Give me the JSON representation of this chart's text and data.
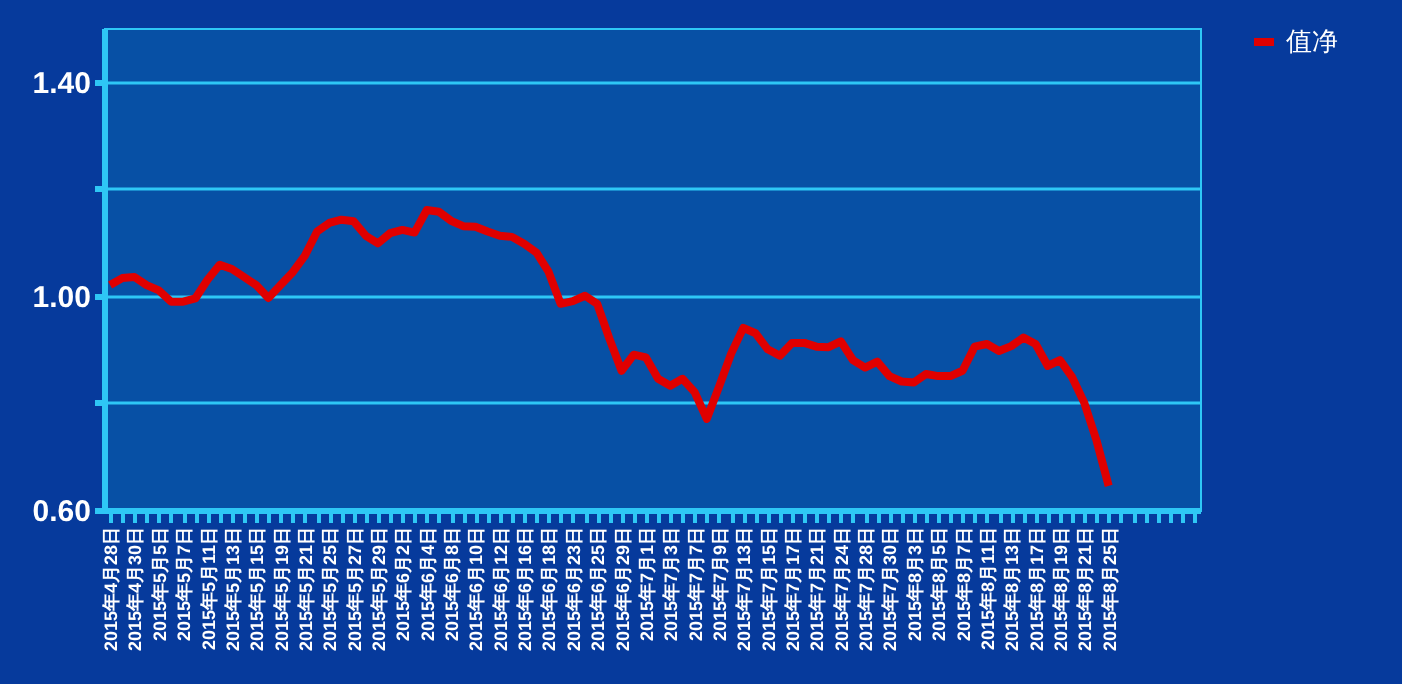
{
  "chart_data": {
    "type": "line",
    "categories": [
      "2015年4月28日",
      null,
      "2015年4月30日",
      null,
      "2015年5月5日",
      null,
      "2015年5月7日",
      null,
      "2015年5月11日",
      null,
      "2015年5月13日",
      null,
      "2015年5月15日",
      null,
      "2015年5月19日",
      null,
      "2015年5月21日",
      null,
      "2015年5月25日",
      null,
      "2015年5月27日",
      null,
      "2015年5月29日",
      null,
      "2015年6月2日",
      null,
      "2015年6月4日",
      null,
      "2015年6月8日",
      null,
      "2015年6月10日",
      null,
      "2015年6月12日",
      null,
      "2015年6月16日",
      null,
      "2015年6月18日",
      null,
      "2015年6月23日",
      null,
      "2015年6月25日",
      null,
      "2015年6月29日",
      null,
      "2015年7月1日",
      null,
      "2015年7月3日",
      null,
      "2015年7月7日",
      null,
      "2015年7月9日",
      null,
      "2015年7月13日",
      null,
      "2015年7月15日",
      null,
      "2015年7月17日",
      null,
      "2015年7月21日",
      null,
      "2015年7月24日",
      null,
      "2015年7月28日",
      null,
      "2015年7月30日",
      null,
      "2015年8月3日",
      null,
      "2015年8月5日",
      null,
      "2015年8月7日",
      null,
      "2015年8月11日",
      null,
      "2015年8月13日",
      null,
      "2015年8月17日",
      null,
      "2015年8月19日",
      null,
      "2015年8月21日",
      null,
      "2015年8月25日",
      null,
      null,
      null,
      null,
      null,
      null,
      null
    ],
    "series": [
      {
        "name": "值净",
        "color": "#e00000",
        "values": [
          1.02,
          1.033,
          1.035,
          1.02,
          1.01,
          0.989,
          0.989,
          0.995,
          1.03,
          1.058,
          1.05,
          1.035,
          1.02,
          0.996,
          1.02,
          1.044,
          1.075,
          1.12,
          1.136,
          1.142,
          1.139,
          1.112,
          1.098,
          1.117,
          1.123,
          1.118,
          1.16,
          1.157,
          1.14,
          1.13,
          1.129,
          1.12,
          1.112,
          1.11,
          1.097,
          1.081,
          1.045,
          0.985,
          0.99,
          1.0,
          0.985,
          0.92,
          0.86,
          0.89,
          0.885,
          0.845,
          0.832,
          0.845,
          0.82,
          0.77,
          0.83,
          0.892,
          0.94,
          0.93,
          0.9,
          0.888,
          0.912,
          0.912,
          0.905,
          0.904,
          0.915,
          0.88,
          0.866,
          0.877,
          0.85,
          0.84,
          0.838,
          0.854,
          0.85,
          0.85,
          0.86,
          0.905,
          0.91,
          0.897,
          0.906,
          0.922,
          0.91,
          0.869,
          0.88,
          0.848,
          0.8,
          0.73,
          0.645,
          null,
          null,
          null,
          null,
          null,
          null,
          null
        ]
      }
    ],
    "ylim": [
      0.6,
      1.5
    ],
    "yticks": [
      {
        "value": 0.6,
        "label": "0.60"
      },
      {
        "value": 0.8,
        "label": null
      },
      {
        "value": 1.0,
        "label": "1.00"
      },
      {
        "value": 1.2,
        "label": null
      },
      {
        "value": 1.4,
        "label": "1.40"
      }
    ],
    "grid": "y",
    "legend": "right",
    "line_style": "solid",
    "marker": "none"
  }
}
